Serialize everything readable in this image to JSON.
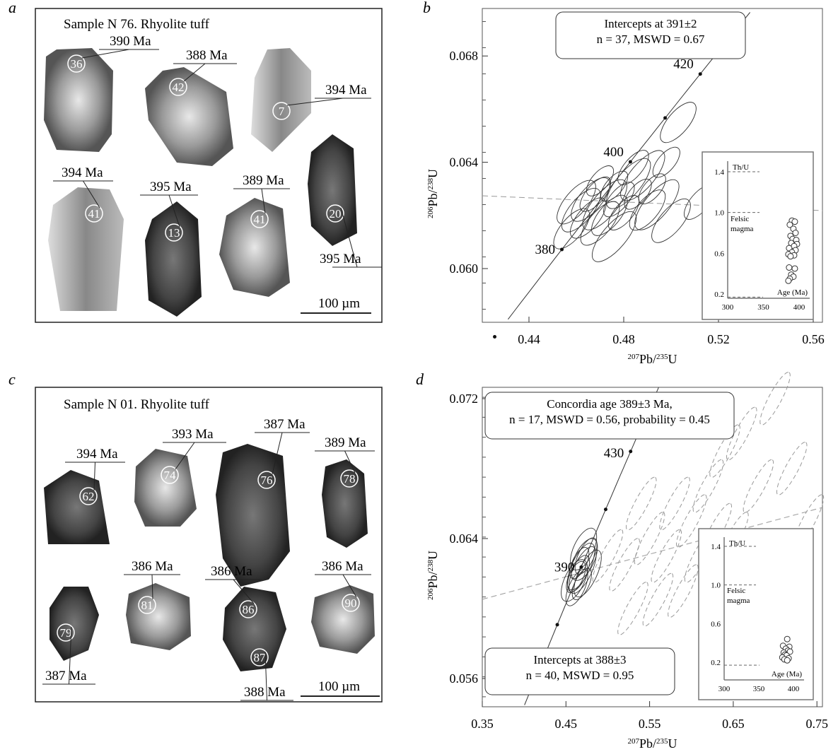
{
  "panels": {
    "a": "a",
    "b": "b",
    "c": "c",
    "d": "d"
  },
  "panel_a": {
    "title": "Sample N 76. Rhyolite tuff",
    "scale": "100 µm",
    "grains": [
      {
        "id": "36",
        "age": "390 Ma"
      },
      {
        "id": "42",
        "age": "388 Ma"
      },
      {
        "id": "7",
        "age": "394 Ma"
      },
      {
        "id": "41",
        "age": "394 Ma"
      },
      {
        "id": "13",
        "age": "395 Ma"
      },
      {
        "id": "41",
        "age": "389 Ma"
      },
      {
        "id": "20",
        "age": "395 Ma"
      }
    ]
  },
  "panel_c": {
    "title": "Sample N 01. Rhyolite tuff",
    "scale": "100 µm",
    "grains": [
      {
        "id": "62",
        "age": "394 Ma"
      },
      {
        "id": "74",
        "age": "393 Ma"
      },
      {
        "id": "76",
        "age": "387 Ma"
      },
      {
        "id": "78",
        "age": "389 Ma"
      },
      {
        "id": "79",
        "age": "387 Ma"
      },
      {
        "id": "81",
        "age": "386 Ma"
      },
      {
        "id": "86",
        "age": "386 Ma"
      },
      {
        "id": "90",
        "age": "386 Ma"
      },
      {
        "id": "87",
        "age": "388 Ma"
      }
    ]
  },
  "chart_data": [
    {
      "type": "scatter",
      "panel": "b",
      "xlabel": "207Pb/235U",
      "ylabel": "206Pb/238U",
      "xticks": [
        "0.44",
        "0.48",
        "0.52",
        "0.56"
      ],
      "yticks": [
        "0.068",
        "0.064",
        "0.060"
      ],
      "xlim": [
        0.42,
        0.564
      ],
      "ylim": [
        0.058,
        0.0698
      ],
      "concordia_labels": [
        "420",
        "400",
        "380"
      ],
      "box_line1": "Intercepts at 391±2",
      "box_line2": "n = 37, MSWD = 0.67",
      "ellipses": [
        [
          0.462,
          0.0622
        ],
        [
          0.468,
          0.0628
        ],
        [
          0.472,
          0.0624
        ],
        [
          0.476,
          0.0631
        ],
        [
          0.465,
          0.0619
        ],
        [
          0.47,
          0.0617
        ],
        [
          0.478,
          0.0626
        ],
        [
          0.482,
          0.0632
        ],
        [
          0.486,
          0.0628
        ],
        [
          0.474,
          0.062
        ],
        [
          0.466,
          0.0626
        ],
        [
          0.48,
          0.0621
        ],
        [
          0.488,
          0.0635
        ],
        [
          0.492,
          0.063
        ],
        [
          0.458,
          0.0615
        ],
        [
          0.46,
          0.0625
        ],
        [
          0.484,
          0.0638
        ],
        [
          0.494,
          0.0624
        ],
        [
          0.498,
          0.064
        ],
        [
          0.503,
          0.0655
        ],
        [
          0.5,
          0.0618
        ],
        [
          0.512,
          0.0625
        ],
        [
          0.476,
          0.0612
        ],
        [
          0.47,
          0.0633
        ],
        [
          0.49,
          0.0622
        ]
      ],
      "inset": {
        "ylabel": "Th/U",
        "xlabel": "Age (Ma)",
        "note1": "Felsic",
        "note2": "magma",
        "xticks": [
          "300",
          "350",
          "400"
        ],
        "yticks": [
          "1.4",
          "1.0",
          "0.6",
          "0.2"
        ],
        "points": [
          [
            390,
            0.92
          ],
          [
            394,
            0.91
          ],
          [
            387,
            0.88
          ],
          [
            392,
            0.84
          ],
          [
            395,
            0.8
          ],
          [
            388,
            0.77
          ],
          [
            391,
            0.74
          ],
          [
            396,
            0.73
          ],
          [
            389,
            0.7
          ],
          [
            397,
            0.69
          ],
          [
            393,
            0.67
          ],
          [
            386,
            0.65
          ],
          [
            395,
            0.63
          ],
          [
            390,
            0.61
          ],
          [
            385,
            0.59
          ],
          [
            393,
            0.58
          ],
          [
            388,
            0.57
          ],
          [
            386,
            0.46
          ],
          [
            394,
            0.45
          ],
          [
            389,
            0.39
          ],
          [
            392,
            0.37
          ],
          [
            387,
            0.35
          ],
          [
            385,
            0.33
          ]
        ]
      }
    },
    {
      "type": "scatter",
      "panel": "d",
      "xlabel": "207Pb/235U",
      "ylabel": "206Pb/238U",
      "xticks": [
        "0.35",
        "0.45",
        "0.55",
        "0.65",
        "0.75"
      ],
      "yticks": [
        "0.072",
        "0.064",
        "0.056"
      ],
      "xlim": [
        0.35,
        0.756
      ],
      "ylim": [
        0.0555,
        0.0733
      ],
      "concordia_labels": [
        "430",
        "390"
      ],
      "box_line1": "Concordia age  389±3 Ma,",
      "box_line2": "n = 17, MSWD = 0.56, probability = 0.45",
      "box2_line1": "Intercepts at 388±3",
      "box2_line2": "n = 40, MSWD = 0.95",
      "ellipses": [
        [
          0.468,
          0.0624
        ],
        [
          0.465,
          0.062
        ],
        [
          0.472,
          0.0628
        ],
        [
          0.462,
          0.0618
        ],
        [
          0.47,
          0.0622
        ],
        [
          0.474,
          0.063
        ],
        [
          0.46,
          0.0616
        ],
        [
          0.466,
          0.0626
        ],
        [
          0.476,
          0.062
        ],
        [
          0.463,
          0.0612
        ],
        [
          0.471,
          0.0634
        ],
        [
          0.469,
          0.0614
        ]
      ],
      "dashed_ellipses": [
        [
          0.52,
          0.0625
        ],
        [
          0.53,
          0.06
        ],
        [
          0.55,
          0.064
        ],
        [
          0.57,
          0.063
        ],
        [
          0.58,
          0.066
        ],
        [
          0.59,
          0.061
        ],
        [
          0.6,
          0.065
        ],
        [
          0.61,
          0.063
        ],
        [
          0.62,
          0.067
        ],
        [
          0.63,
          0.0645
        ],
        [
          0.64,
          0.069
        ],
        [
          0.66,
          0.07
        ],
        [
          0.68,
          0.067
        ],
        [
          0.7,
          0.072
        ],
        [
          0.72,
          0.068
        ],
        [
          0.54,
          0.066
        ],
        [
          0.56,
          0.0605
        ],
        [
          0.65,
          0.064
        ],
        [
          0.5,
          0.063
        ],
        [
          0.74,
          0.065
        ]
      ],
      "inset": {
        "ylabel": "Th/U",
        "xlabel": "Age (Ma)",
        "note1": "Felsic",
        "note2": "magma",
        "xticks": [
          "300",
          "350",
          "400"
        ],
        "yticks": [
          "1.4",
          "1.0",
          "0.6",
          "0.2"
        ],
        "points": [
          [
            391,
            0.44
          ],
          [
            385,
            0.37
          ],
          [
            394,
            0.36
          ],
          [
            389,
            0.34
          ],
          [
            392,
            0.32
          ],
          [
            386,
            0.3
          ],
          [
            395,
            0.31
          ],
          [
            388,
            0.28
          ],
          [
            390,
            0.27
          ],
          [
            384,
            0.25
          ],
          [
            393,
            0.24
          ],
          [
            387,
            0.23
          ],
          [
            391,
            0.22
          ]
        ]
      }
    }
  ]
}
